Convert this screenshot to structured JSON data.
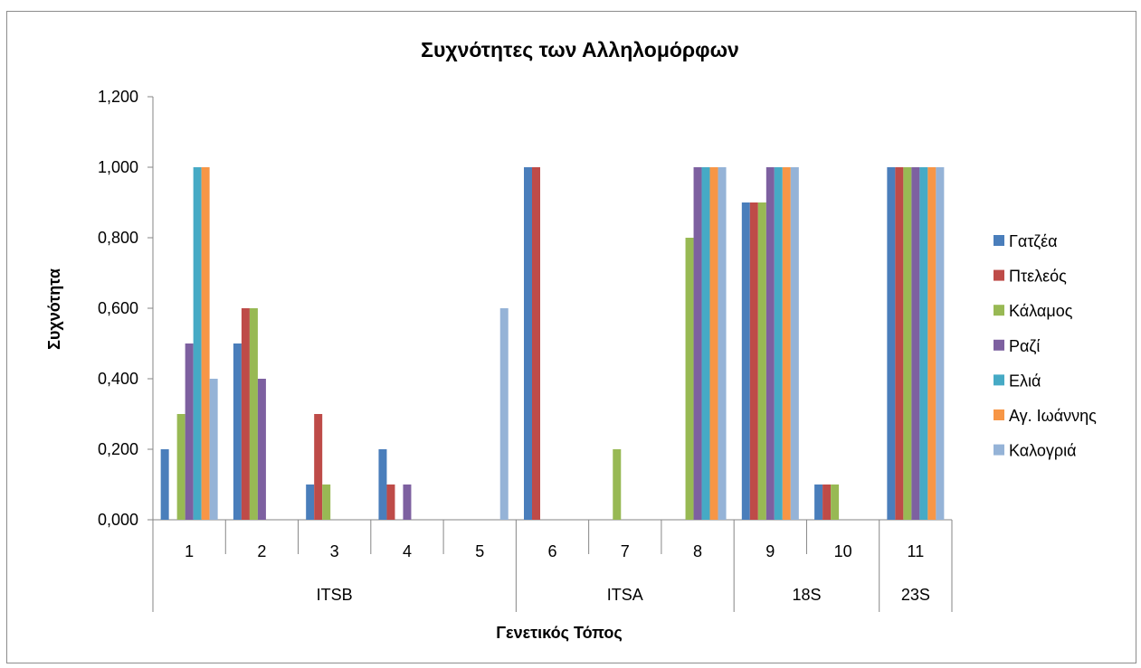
{
  "chart_data": {
    "type": "bar",
    "title": "Συχνότητες των Αλληλομόρφων",
    "xlabel": "Γενετικός Τόπος",
    "ylabel": "Συχνότητα",
    "ylim": [
      0,
      1.2
    ],
    "yticks": [
      "0,000",
      "0,200",
      "0,400",
      "0,600",
      "0,800",
      "1,000",
      "1,200"
    ],
    "categories": [
      "1",
      "2",
      "3",
      "4",
      "5",
      "6",
      "7",
      "8",
      "9",
      "10",
      "11"
    ],
    "groups": [
      {
        "label": "ITSB",
        "from": 0,
        "to": 4
      },
      {
        "label": "ITSA",
        "from": 5,
        "to": 7
      },
      {
        "label": "18S",
        "from": 8,
        "to": 9
      },
      {
        "label": "23S",
        "from": 10,
        "to": 10
      }
    ],
    "grid": false,
    "legend_position": "right",
    "series": [
      {
        "name": "Γατζέα",
        "color": "#4a7ebb",
        "values": [
          0.2,
          0.5,
          0.1,
          0.2,
          0,
          1.0,
          0,
          0,
          0.9,
          0.1,
          1.0
        ]
      },
      {
        "name": "Πτελεός",
        "color": "#be4b48",
        "values": [
          0,
          0.6,
          0.3,
          0.1,
          0,
          1.0,
          0,
          0,
          0.9,
          0.1,
          1.0
        ]
      },
      {
        "name": "Κάλαμος",
        "color": "#98b954",
        "values": [
          0.3,
          0.6,
          0.1,
          0,
          0,
          0,
          0.2,
          0.8,
          0.9,
          0.1,
          1.0
        ]
      },
      {
        "name": "Ραζί",
        "color": "#7d60a0",
        "values": [
          0.5,
          0.4,
          0,
          0.1,
          0,
          0,
          0,
          1.0,
          1.0,
          0,
          1.0
        ]
      },
      {
        "name": "Ελιά",
        "color": "#46aac5",
        "values": [
          1.0,
          0,
          0,
          0,
          0,
          0,
          0,
          1.0,
          1.0,
          0,
          1.0
        ]
      },
      {
        "name": "Αγ. Ιωάννης",
        "color": "#f79646",
        "values": [
          1.0,
          0,
          0,
          0,
          0,
          0,
          0,
          1.0,
          1.0,
          0,
          1.0
        ]
      },
      {
        "name": "Καλογριά",
        "color": "#95b3d7",
        "values": [
          0.4,
          0,
          0,
          0,
          0.6,
          0,
          0,
          1.0,
          1.0,
          0,
          1.0
        ]
      }
    ]
  }
}
